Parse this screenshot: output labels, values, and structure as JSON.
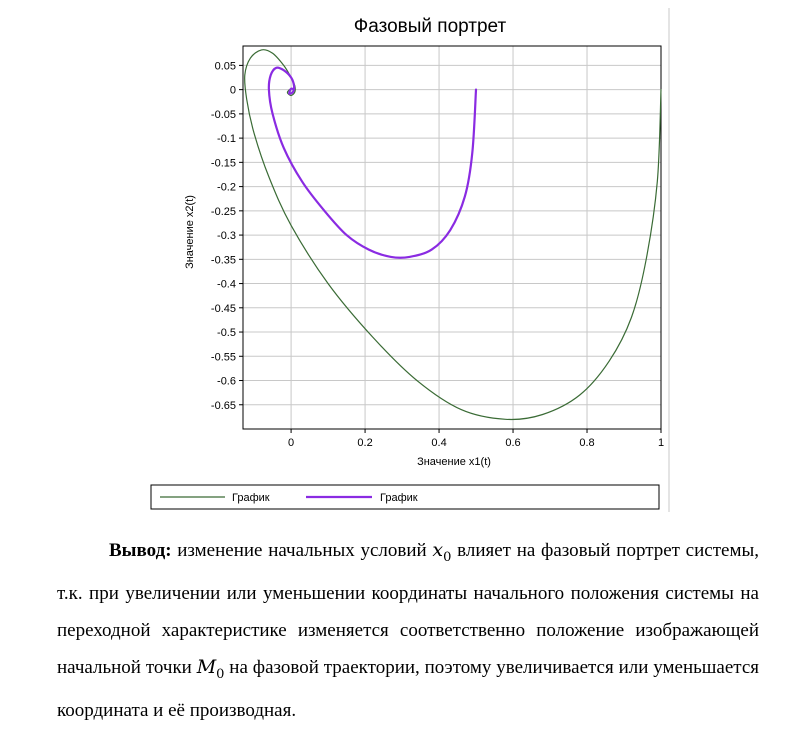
{
  "chart_data": {
    "type": "line",
    "title": "Фазовый портрет",
    "xlabel": "Значение x1(t)",
    "ylabel": "Значение x2(t)",
    "xlim": [
      -0.13,
      1.0
    ],
    "ylim": [
      -0.7,
      0.09
    ],
    "x_ticks": [
      0,
      0.2,
      0.4,
      0.6,
      0.8,
      1
    ],
    "x_tick_labels": [
      "0",
      "0.2",
      "0.4",
      "0.6",
      "0.8",
      "1"
    ],
    "y_ticks": [
      0.05,
      0,
      -0.05,
      -0.1,
      -0.15,
      -0.2,
      -0.25,
      -0.3,
      -0.35,
      -0.4,
      -0.45,
      -0.5,
      -0.55,
      -0.6,
      -0.65
    ],
    "y_tick_labels": [
      "0.05",
      "0",
      "-0.05",
      "-0.1",
      "-0.15",
      "-0.2",
      "-0.25",
      "-0.3",
      "-0.35",
      "-0.4",
      "-0.45",
      "-0.5",
      "-0.55",
      "-0.6",
      "-0.65"
    ],
    "grid": true,
    "legend_position": "bottom",
    "series": [
      {
        "name": "График",
        "color": "#3a6b35",
        "x": [
          1.0,
          0.99,
          0.96,
          0.92,
          0.86,
          0.78,
          0.68,
          0.58,
          0.46,
          0.34,
          0.22,
          0.1,
          0.0,
          -0.06,
          -0.1,
          -0.12,
          -0.125,
          -0.11,
          -0.08,
          -0.05,
          -0.02,
          0.0,
          0.01,
          0.01,
          0.0,
          -0.01,
          0.0,
          0.01
        ],
        "y": [
          0.0,
          -0.19,
          -0.35,
          -0.47,
          -0.56,
          -0.63,
          -0.67,
          -0.68,
          -0.66,
          -0.6,
          -0.51,
          -0.4,
          -0.28,
          -0.18,
          -0.09,
          -0.02,
          0.03,
          0.065,
          0.082,
          0.075,
          0.05,
          0.025,
          0.008,
          -0.005,
          -0.012,
          -0.006,
          0.002,
          0.0
        ]
      },
      {
        "name": "График",
        "color": "#8a2be2",
        "x": [
          0.5,
          0.49,
          0.47,
          0.43,
          0.38,
          0.32,
          0.27,
          0.21,
          0.15,
          0.09,
          0.03,
          -0.02,
          -0.05,
          -0.06,
          -0.055,
          -0.04,
          -0.02,
          0.0,
          0.008,
          0.005,
          -0.005,
          0.0,
          0.008
        ],
        "y": [
          0.0,
          -0.13,
          -0.22,
          -0.29,
          -0.33,
          -0.345,
          -0.345,
          -0.33,
          -0.3,
          -0.25,
          -0.19,
          -0.12,
          -0.05,
          0.0,
          0.03,
          0.045,
          0.04,
          0.025,
          0.008,
          -0.005,
          -0.008,
          0.002,
          0.0
        ]
      }
    ]
  },
  "conclusion": {
    "heading": "Вывод:",
    "part1": " изменение начальных условий ",
    "x0_symbol": "x",
    "x0_sub": "0",
    "part2": " влияет на фазовый портрет системы, т.к. при увеличении или уменьшении координаты начального положения системы на переходной характеристике изменяется соответственно положение изображающей начальной точки ",
    "m0_symbol": "M",
    "m0_sub": "0",
    "part3": " на фазовой траектории, поэтому увеличивается или уменьшается координата и её производная."
  }
}
